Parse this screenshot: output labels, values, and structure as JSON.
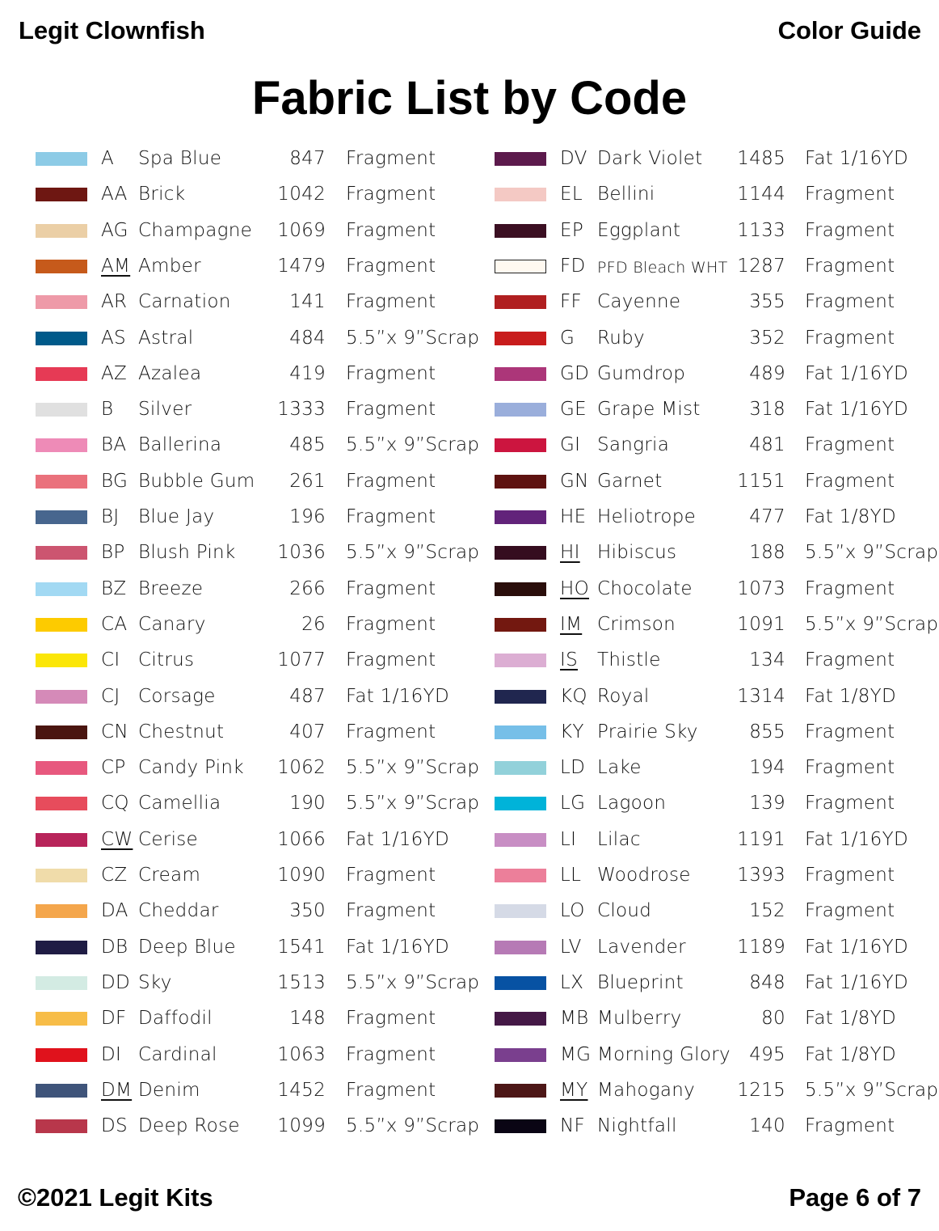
{
  "header": {
    "left": "Legit Clownfish",
    "right": "Color Guide"
  },
  "title": "Fabric List by Code",
  "footer": {
    "left": "©2021 Legit Kits",
    "right": "Page 6 of 7"
  },
  "columns": [
    [
      {
        "color": "#8dcbe6",
        "code": "A",
        "name": "Spa Blue",
        "count": "847",
        "type": "Fragment"
      },
      {
        "color": "#6e1712",
        "code": "AA",
        "name": "Brick",
        "count": "1042",
        "type": "Fragment"
      },
      {
        "color": "#ebcfa6",
        "code": "AG",
        "name": "Champagne",
        "count": "1069",
        "type": "Fragment"
      },
      {
        "color": "#c65a1b",
        "code": "AM",
        "name": "Amber",
        "count": "1479",
        "type": "Fragment",
        "underlined": true
      },
      {
        "color": "#ee9aa8",
        "code": "AR",
        "name": "Carnation",
        "count": "141",
        "type": "Fragment"
      },
      {
        "color": "#005a8a",
        "code": "AS",
        "name": "Astral",
        "count": "484",
        "type": "5.5”x 9”Scrap"
      },
      {
        "color": "#e63a55",
        "code": "AZ",
        "name": "Azalea",
        "count": "419",
        "type": "Fragment"
      },
      {
        "color": "#e0e0e0",
        "code": "B",
        "name": "Silver",
        "count": "1333",
        "type": "Fragment"
      },
      {
        "color": "#ee8bb7",
        "code": "BA",
        "name": "Ballerina",
        "count": "485",
        "type": "5.5”x 9”Scrap"
      },
      {
        "color": "#ea717c",
        "code": "BG",
        "name": "Bubble Gum",
        "count": "261",
        "type": "Fragment"
      },
      {
        "color": "#47668e",
        "code": "BJ",
        "name": "Blue Jay",
        "count": "196",
        "type": "Fragment"
      },
      {
        "color": "#cc5570",
        "code": "BP",
        "name": "Blush Pink",
        "count": "1036",
        "type": "5.5”x 9”Scrap"
      },
      {
        "color": "#a2d9f3",
        "code": "BZ",
        "name": "Breeze",
        "count": "266",
        "type": "Fragment"
      },
      {
        "color": "#fdcb00",
        "code": "CA",
        "name": "Canary",
        "count": "26",
        "type": "Fragment"
      },
      {
        "color": "#fbe608",
        "code": "CI",
        "name": "Citrus",
        "count": "1077",
        "type": "Fragment"
      },
      {
        "color": "#d58ab8",
        "code": "CJ",
        "name": "Corsage",
        "count": "487",
        "type": "Fat 1/16YD"
      },
      {
        "color": "#4a1510",
        "code": "CN",
        "name": "Chestnut",
        "count": "407",
        "type": "Fragment"
      },
      {
        "color": "#e7587e",
        "code": "CP",
        "name": "Candy Pink",
        "count": "1062",
        "type": "5.5”x 9”Scrap"
      },
      {
        "color": "#e74c5c",
        "code": "CQ",
        "name": "Camellia",
        "count": "190",
        "type": "5.5”x 9”Scrap"
      },
      {
        "color": "#b8245a",
        "code": "CW",
        "name": "Cerise",
        "count": "1066",
        "type": "Fat 1/16YD",
        "underlined": true
      },
      {
        "color": "#f0dcaa",
        "code": "CZ",
        "name": "Cream",
        "count": "1090",
        "type": "Fragment"
      },
      {
        "color": "#f4a64c",
        "code": "DA",
        "name": "Cheddar",
        "count": "350",
        "type": "Fragment"
      },
      {
        "color": "#1f1c44",
        "code": "DB",
        "name": "Deep Blue",
        "count": "1541",
        "type": "Fat 1/16YD"
      },
      {
        "color": "#d3ebe3",
        "code": "DD",
        "name": "Sky",
        "count": "1513",
        "type": "5.5”x 9”Scrap"
      },
      {
        "color": "#f7bd48",
        "code": "DF",
        "name": "Daffodil",
        "count": "148",
        "type": "Fragment"
      },
      {
        "color": "#e0121c",
        "code": "DI",
        "name": "Cardinal",
        "count": "1063",
        "type": "Fragment"
      },
      {
        "color": "#3f547a",
        "code": "DM",
        "name": "Denim",
        "count": "1452",
        "type": "Fragment",
        "underlined": true
      },
      {
        "color": "#b8374b",
        "code": "DS",
        "name": "Deep Rose",
        "count": "1099",
        "type": "5.5”x 9”Scrap"
      }
    ],
    [
      {
        "color": "#5c1a4c",
        "code": "DV",
        "name": "Dark Violet",
        "count": "1485",
        "type": "Fat 1/16YD"
      },
      {
        "color": "#f4c9c4",
        "code": "EL",
        "name": "Bellini",
        "count": "1144",
        "type": "Fragment"
      },
      {
        "color": "#3b0f22",
        "code": "EP",
        "name": "Eggplant",
        "count": "1133",
        "type": "Fragment"
      },
      {
        "color": "#fff9f0",
        "code": "FD",
        "name": "PFD Bleach WHT",
        "count": "1287",
        "type": "Fragment",
        "outlined": true
      },
      {
        "color": "#b01f20",
        "code": "FF",
        "name": "Cayenne",
        "count": "355",
        "type": "Fragment"
      },
      {
        "color": "#c81c1c",
        "code": "G",
        "name": "Ruby",
        "count": "352",
        "type": "Fragment"
      },
      {
        "color": "#ac3679",
        "code": "GD",
        "name": "Gumdrop",
        "count": "489",
        "type": "Fat 1/16YD"
      },
      {
        "color": "#9aaedb",
        "code": "GE",
        "name": "Grape Mist",
        "count": "318",
        "type": "Fat 1/16YD"
      },
      {
        "color": "#cc153f",
        "code": "GI",
        "name": "Sangria",
        "count": "481",
        "type": "Fragment"
      },
      {
        "color": "#5e1210",
        "code": "GN",
        "name": "Garnet",
        "count": "1151",
        "type": "Fragment"
      },
      {
        "color": "#62237a",
        "code": "HE",
        "name": "Heliotrope",
        "count": "477",
        "type": "Fat 1/8YD"
      },
      {
        "color": "#350d1f",
        "code": "HI",
        "name": "Hibiscus",
        "count": "188",
        "type": "5.5”x 9”Scrap",
        "underlined": true
      },
      {
        "color": "#2a0e0b",
        "code": "HO",
        "name": "Chocolate",
        "count": "1073",
        "type": "Fragment",
        "underlined": true
      },
      {
        "color": "#731810",
        "code": "IM",
        "name": "Crimson",
        "count": "1091",
        "type": "5.5”x 9”Scrap",
        "underlined": true
      },
      {
        "color": "#dcaed3",
        "code": "IS",
        "name": "Thistle",
        "count": "134",
        "type": "Fragment",
        "underlined": true
      },
      {
        "color": "#20264f",
        "code": "KQ",
        "name": "Royal",
        "count": "1314",
        "type": "Fat 1/8YD"
      },
      {
        "color": "#76bfe8",
        "code": "KY",
        "name": "Prairie Sky",
        "count": "855",
        "type": "Fragment"
      },
      {
        "color": "#92d1da",
        "code": "LD",
        "name": "Lake",
        "count": "194",
        "type": "Fragment"
      },
      {
        "color": "#00b3d9",
        "code": "LG",
        "name": "Lagoon",
        "count": "139",
        "type": "Fragment"
      },
      {
        "color": "#c88ec4",
        "code": "LI",
        "name": "Lilac",
        "count": "1191",
        "type": "Fat 1/16YD"
      },
      {
        "color": "#ec7f9a",
        "code": "LL",
        "name": "Woodrose",
        "count": "1393",
        "type": "Fragment"
      },
      {
        "color": "#d5dae6",
        "code": "LO",
        "name": "Cloud",
        "count": "152",
        "type": "Fragment"
      },
      {
        "color": "#b67ab5",
        "code": "LV",
        "name": "Lavender",
        "count": "1189",
        "type": "Fat 1/16YD"
      },
      {
        "color": "#0752a3",
        "code": "LX",
        "name": "Blueprint",
        "count": "848",
        "type": "Fat 1/16YD"
      },
      {
        "color": "#441846",
        "code": "MB",
        "name": "Mulberry",
        "count": "80",
        "type": "Fat 1/8YD"
      },
      {
        "color": "#7a3f8e",
        "code": "MG",
        "name": "Morning Glory",
        "count": "495",
        "type": "Fat 1/8YD"
      },
      {
        "color": "#4d1717",
        "code": "MY",
        "name": "Mahogany",
        "count": "1215",
        "type": "5.5”x 9”Scrap",
        "underlined": true
      },
      {
        "color": "#0a0514",
        "code": "NF",
        "name": "Nightfall",
        "count": "140",
        "type": "Fragment"
      }
    ]
  ]
}
